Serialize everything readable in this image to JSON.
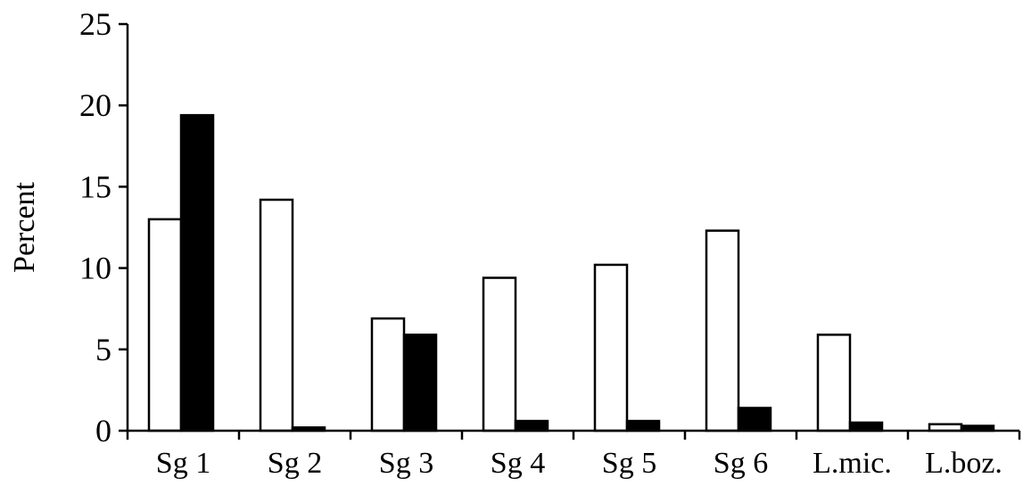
{
  "chart_data": {
    "type": "bar",
    "title": "",
    "xlabel": "",
    "ylabel": "Percent",
    "ylim": [
      0,
      25
    ],
    "yticks": [
      0,
      5,
      10,
      15,
      20,
      25
    ],
    "grid": false,
    "legend": "none",
    "categories": [
      "Sg 1",
      "Sg 2",
      "Sg 3",
      "Sg 4",
      "Sg 5",
      "Sg 6",
      "L.mic.",
      "L.boz."
    ],
    "series": [
      {
        "fill": "#ffffff",
        "stroke": "#000000",
        "values": [
          13.0,
          14.2,
          6.9,
          9.4,
          10.2,
          12.3,
          5.9,
          0.4
        ]
      },
      {
        "fill": "#000000",
        "stroke": "#000000",
        "values": [
          19.4,
          0.2,
          5.9,
          0.6,
          0.6,
          1.4,
          0.5,
          0.3
        ]
      }
    ]
  }
}
